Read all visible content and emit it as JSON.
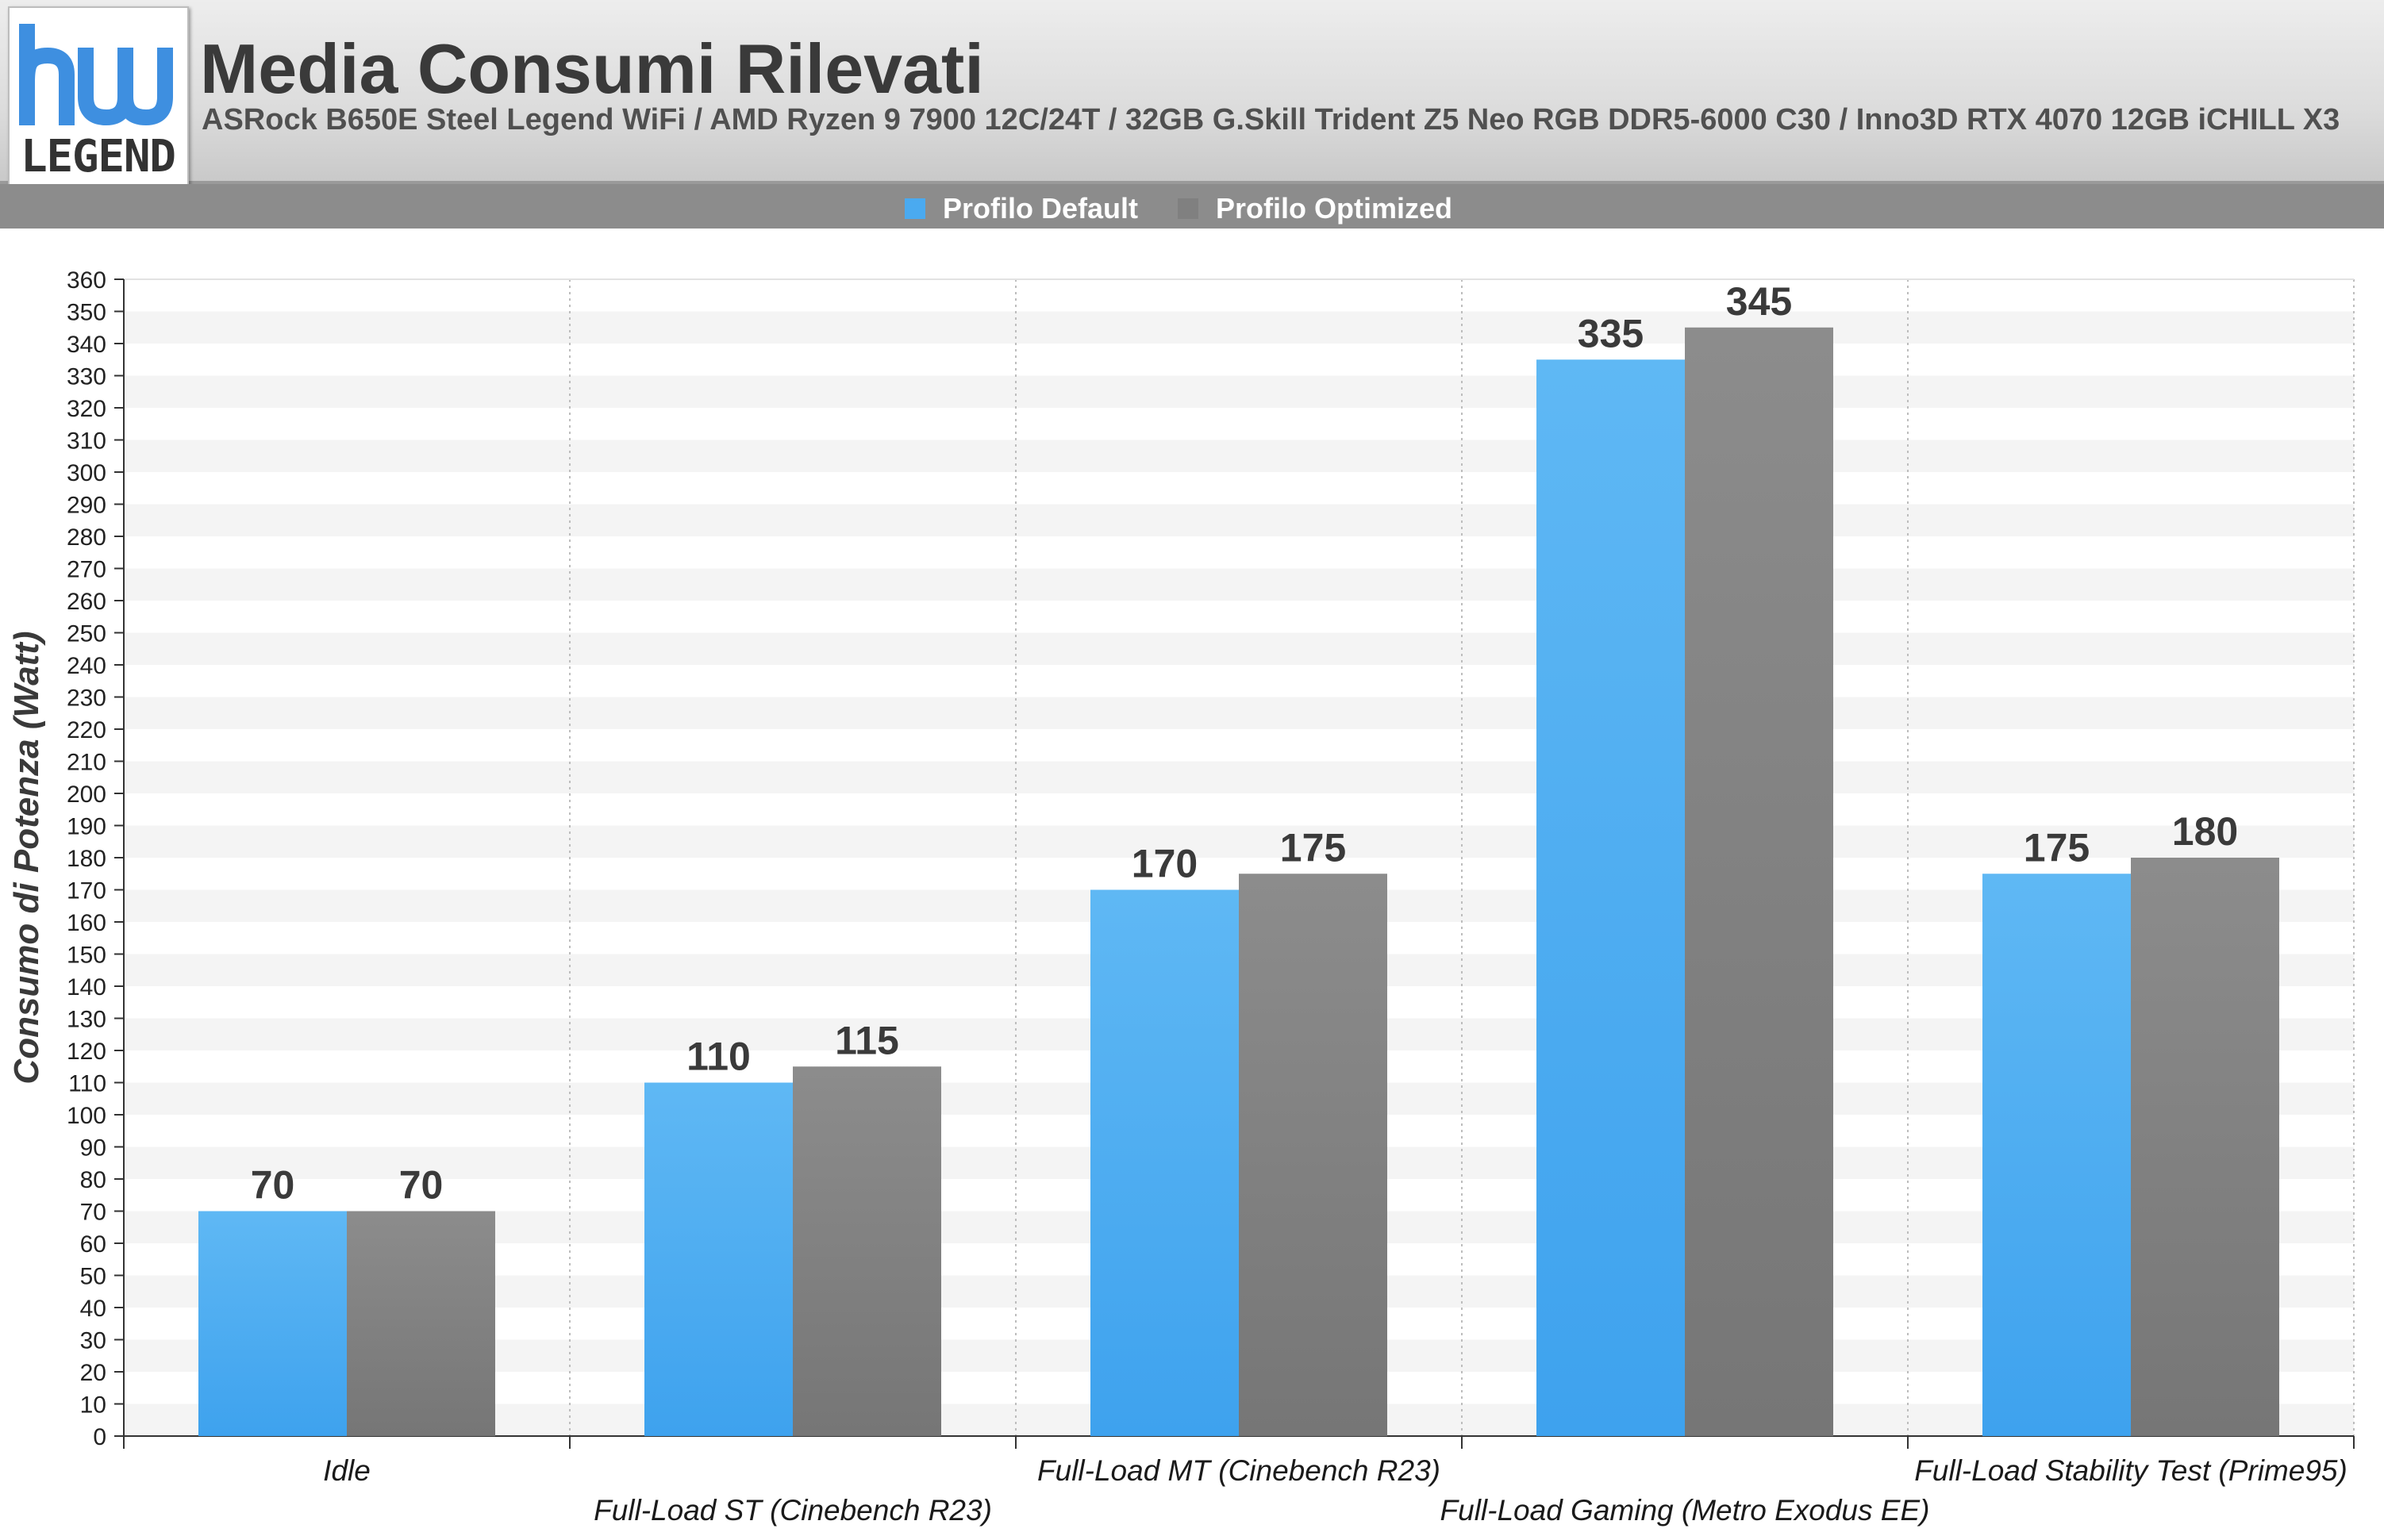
{
  "header": {
    "logo_text": "LEGEND",
    "title": "Media Consumi Rilevati",
    "subtitle": "ASRock B650E Steel Legend WiFi / AMD Ryzen 9 7900 12C/24T / 32GB G.Skill Trident Z5 Neo RGB DDR5-6000 C30 / Inno3D RTX 4070 12GB iCHILL X3"
  },
  "legend": [
    {
      "label": "Profilo Default",
      "color": "#4aaaf0"
    },
    {
      "label": "Profilo Optimized",
      "color": "#808080"
    }
  ],
  "chart_data": {
    "type": "bar",
    "title": "Media Consumi Rilevati",
    "subtitle": "ASRock B650E Steel Legend WiFi / AMD Ryzen 9 7900 12C/24T / 32GB G.Skill Trident Z5 Neo RGB DDR5-6000 C30 / Inno3D RTX 4070 12GB iCHILL X3",
    "xlabel": "",
    "ylabel": "Consumo di Potenza (Watt)",
    "categories": [
      "Idle",
      "Full-Load ST (Cinebench R23)",
      "Full-Load MT (Cinebench R23)",
      "Full-Load Gaming (Metro Exodus EE)",
      "Full-Load Stability Test (Prime95)"
    ],
    "series": [
      {
        "name": "Profilo Default",
        "values": [
          70,
          110,
          170,
          335,
          175
        ],
        "color": "#4aaaf0"
      },
      {
        "name": "Profilo Optimized",
        "values": [
          70,
          115,
          175,
          345,
          180
        ],
        "color": "#808080"
      }
    ],
    "ylim": [
      0,
      360
    ],
    "ytick_step": 10,
    "grid": true,
    "legend_position": "top-center"
  }
}
